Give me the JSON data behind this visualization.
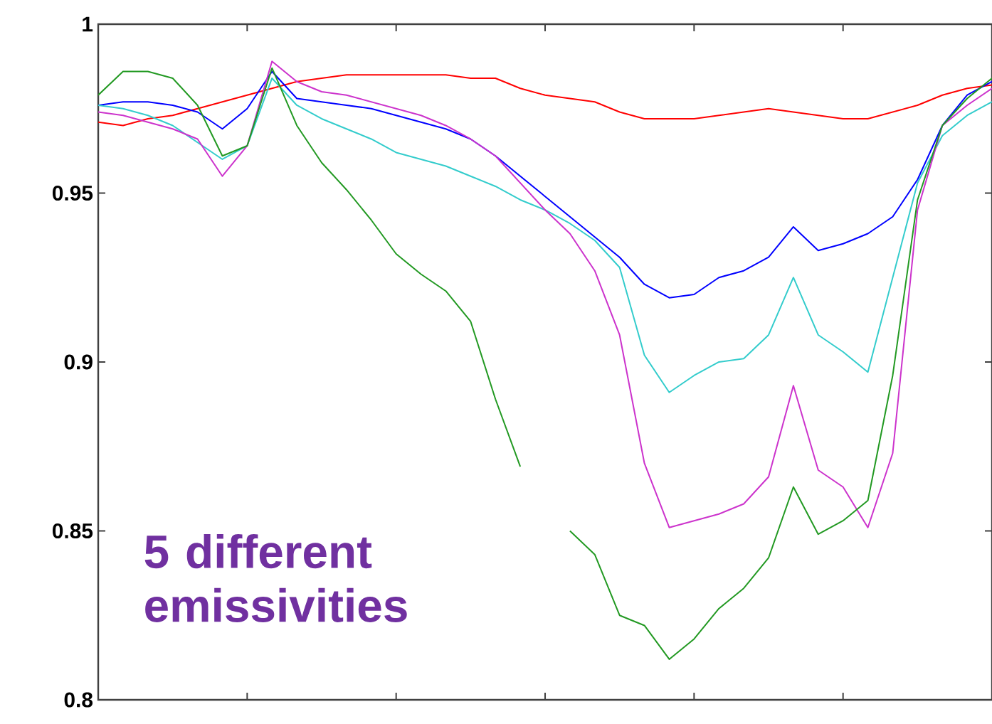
{
  "chart_data": {
    "type": "line",
    "categories": [
      null,
      null,
      null,
      null,
      null,
      null,
      null,
      null,
      null,
      null,
      null,
      null,
      null,
      null,
      null,
      null,
      null,
      null,
      null,
      null,
      null,
      null,
      null,
      null,
      null,
      null,
      null,
      null,
      null,
      null,
      null,
      null,
      null,
      null,
      null,
      null,
      null
    ],
    "ylim": [
      0.8,
      1
    ],
    "yticks": [
      0.8,
      0.85,
      0.9,
      0.95,
      1
    ],
    "annotations": [
      "5 different emissivities"
    ],
    "series": [
      {
        "color": "#ff0000",
        "values": [
          0.971,
          0.97,
          0.972,
          0.973,
          0.975,
          0.977,
          0.979,
          0.981,
          0.983,
          0.984,
          0.985,
          0.985,
          0.985,
          0.985,
          0.985,
          0.984,
          0.984,
          0.981,
          0.979,
          0.978,
          0.977,
          0.974,
          0.972,
          0.972,
          0.972,
          0.973,
          0.974,
          0.975,
          0.974,
          0.973,
          0.972,
          0.972,
          0.974,
          0.976,
          0.979,
          0.981,
          0.982
        ]
      },
      {
        "color": "#0000ff",
        "values": [
          0.976,
          0.977,
          0.977,
          0.976,
          0.974,
          0.969,
          0.975,
          0.986,
          0.978,
          0.977,
          0.976,
          0.975,
          0.973,
          0.971,
          0.969,
          0.966,
          0.961,
          0.955,
          0.949,
          0.943,
          0.937,
          0.931,
          0.923,
          0.919,
          0.92,
          0.925,
          0.927,
          0.931,
          0.94,
          0.933,
          0.935,
          0.938,
          0.943,
          0.954,
          0.97,
          0.979,
          0.983
        ]
      },
      {
        "color": "#33cccc",
        "values": [
          0.976,
          0.975,
          0.973,
          0.97,
          0.965,
          0.96,
          0.964,
          0.984,
          0.976,
          0.972,
          0.969,
          0.966,
          0.962,
          0.96,
          0.958,
          0.955,
          0.952,
          0.948,
          0.945,
          0.941,
          0.936,
          0.928,
          0.902,
          0.891,
          0.896,
          0.9,
          0.901,
          0.908,
          0.925,
          0.908,
          0.903,
          0.897,
          0.925,
          0.953,
          0.967,
          0.973,
          0.977
        ]
      },
      {
        "color": "#cc33cc",
        "values": [
          0.974,
          0.973,
          0.971,
          0.969,
          0.966,
          0.955,
          0.964,
          0.989,
          0.983,
          0.98,
          0.979,
          0.977,
          0.975,
          0.973,
          0.97,
          0.966,
          0.961,
          0.953,
          0.945,
          0.938,
          0.927,
          0.908,
          0.87,
          0.851,
          0.853,
          0.855,
          0.858,
          0.866,
          0.893,
          0.868,
          0.863,
          0.851,
          0.873,
          0.945,
          0.97,
          0.976,
          0.981
        ]
      },
      {
        "color": "#229922",
        "values": [
          0.979,
          0.986,
          0.986,
          0.984,
          0.976,
          0.961,
          0.964,
          0.987,
          0.97,
          0.959,
          0.951,
          0.942,
          0.932,
          0.926,
          0.921,
          0.912,
          0.889,
          0.869,
          null,
          0.85,
          0.843,
          0.825,
          0.822,
          0.812,
          0.818,
          0.827,
          0.833,
          0.842,
          0.863,
          0.849,
          0.853,
          0.859,
          0.896,
          0.948,
          0.97,
          0.978,
          0.984
        ]
      }
    ]
  }
}
